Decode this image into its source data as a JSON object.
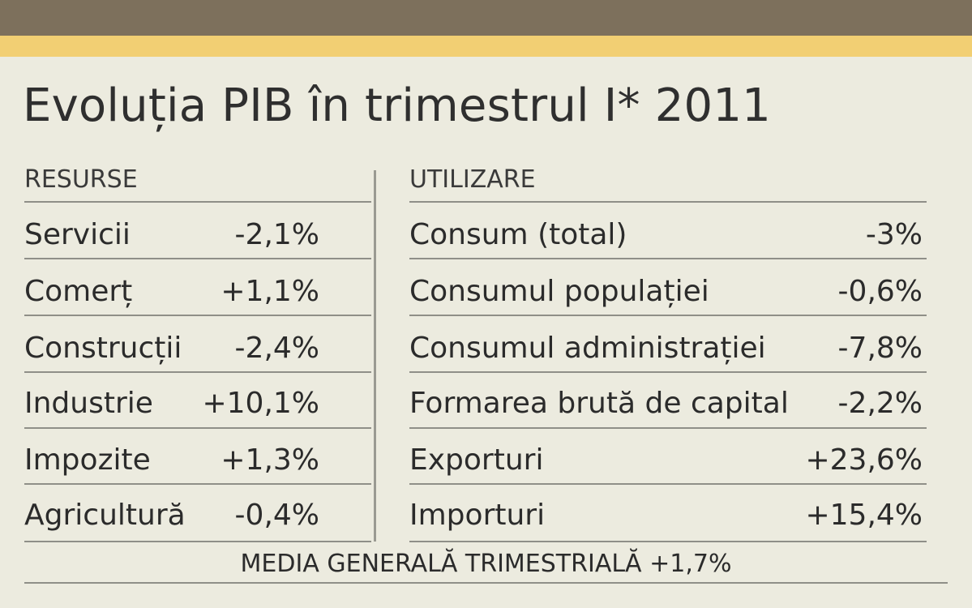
{
  "colors": {
    "top_band": "#7d705c",
    "accent_band": "#f2cf73",
    "background": "#ecebdf"
  },
  "title": "Evoluția PIB în trimestrul I* 2011",
  "resurse": {
    "header": "RESURSE",
    "rows": [
      {
        "label": "Servicii",
        "value": "-2,1%"
      },
      {
        "label": "Comerț",
        "value": "+1,1%"
      },
      {
        "label": "Construcții",
        "value": "-2,4%"
      },
      {
        "label": "Industrie",
        "value": "+10,1%"
      },
      {
        "label": "Impozite",
        "value": "+1,3%"
      },
      {
        "label": "Agricultură",
        "value": "-0,4%"
      }
    ]
  },
  "utilizare": {
    "header": "UTILIZARE",
    "rows": [
      {
        "label": "Consum (total)",
        "value": "-3%"
      },
      {
        "label": "Consumul populației",
        "value": "-0,6%"
      },
      {
        "label": "Consumul administrației",
        "value": "-7,8%"
      },
      {
        "label": "Formarea brută de capital",
        "value": "-2,2%"
      },
      {
        "label": "Exporturi",
        "value": "+23,6%"
      },
      {
        "label": "Importuri",
        "value": "+15,4%"
      }
    ]
  },
  "total": "MEDIA GENERALĂ TRIMESTRIALĂ +1,7%"
}
